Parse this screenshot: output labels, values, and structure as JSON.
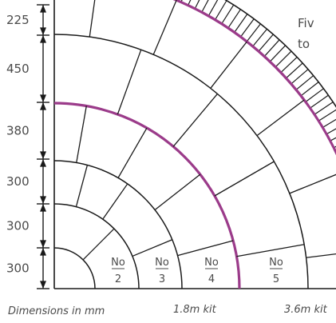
{
  "note_lines": [
    "Fiv",
    "to"
  ],
  "dimensions": [
    {
      "label": "225",
      "value_mm": 225
    },
    {
      "label": "450",
      "value_mm": 450
    },
    {
      "label": "380",
      "value_mm": 380
    },
    {
      "label": "300",
      "value_mm": 300
    },
    {
      "label": "300",
      "value_mm": 300
    },
    {
      "label": "300",
      "value_mm": 300
    }
  ],
  "rings": [
    {
      "word": "No",
      "number": "2"
    },
    {
      "word": "No",
      "number": "3"
    },
    {
      "word": "No",
      "number": "4"
    },
    {
      "word": "No",
      "number": "5"
    }
  ],
  "captions": {
    "units": "Dimensions in mm",
    "kit_small": "1.8m kit",
    "kit_large": "3.6m kit"
  },
  "colors": {
    "line": "#1a1a1a",
    "kit_ring": "#9b3b8a",
    "text": "#4a4a4a"
  }
}
